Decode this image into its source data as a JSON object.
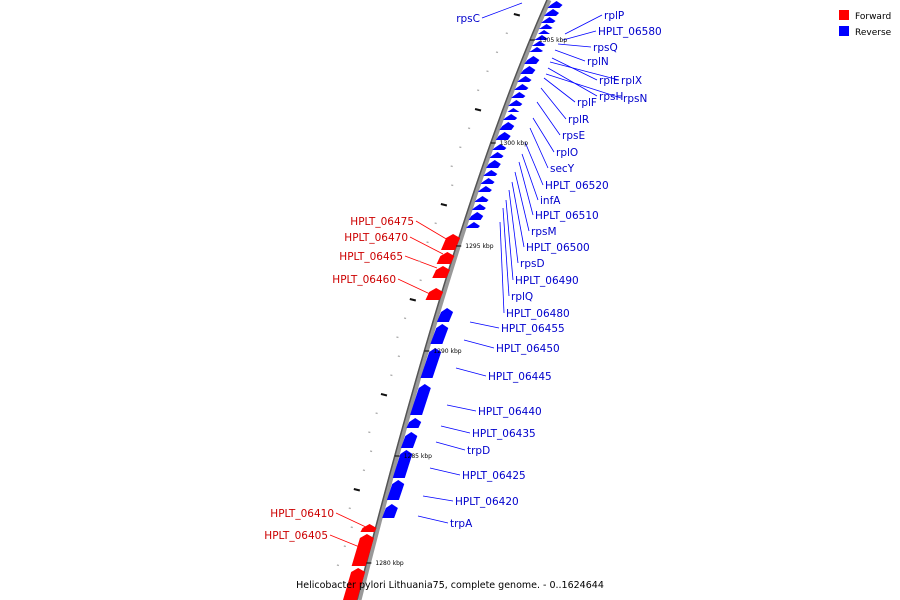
{
  "caption": "Helicobacter pylori Lithuania75, complete genome. - 0..1624644",
  "colors": {
    "forward": "#ff0000",
    "forward_text": "#cc0000",
    "reverse": "#0000ff",
    "reverse_text": "#0000cc"
  },
  "legend": [
    {
      "label": "Forward",
      "color": "#ff0000"
    },
    {
      "label": "Reverse",
      "color": "#0000ff"
    }
  ],
  "ticks": [
    "1305 kbp",
    "1300 kbp",
    "1295 kbp",
    "1290 kbp",
    "1285 kbp",
    "1280 kbp"
  ],
  "genes_reverse": [
    "rpsC",
    "rplP",
    "HPLT_06580",
    "rpsQ",
    "rplN",
    "rplE",
    "rplX",
    "rpsH",
    "rpsN",
    "rplF",
    "rplR",
    "rpsE",
    "rplO",
    "secY",
    "HPLT_06520",
    "infA",
    "HPLT_06510",
    "rpsM",
    "HPLT_06500",
    "rpsD",
    "HPLT_06490",
    "rplQ",
    "HPLT_06480",
    "HPLT_06455",
    "HPLT_06450",
    "HPLT_06445",
    "HPLT_06440",
    "HPLT_06435",
    "trpD",
    "HPLT_06425",
    "HPLT_06420",
    "trpA"
  ],
  "genes_forward": [
    "HPLT_06475",
    "HPLT_06470",
    "HPLT_06465",
    "HPLT_06460",
    "HPLT_06410",
    "HPLT_06405"
  ]
}
